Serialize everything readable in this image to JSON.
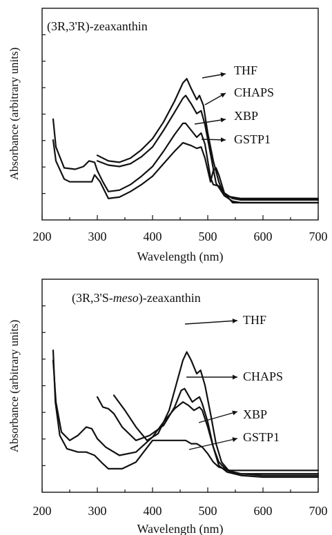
{
  "chart_data": [
    {
      "type": "line",
      "title": "(3R,3'R)-zeaxanthin",
      "xlabel": "Wavelength (nm)",
      "ylabel": "Absorbance (arbitrary units)",
      "xlim": [
        200,
        700
      ],
      "ylim": [
        0,
        1
      ],
      "xticks": [
        "200",
        "300",
        "400",
        "500",
        "600",
        "700"
      ],
      "grid": false,
      "series": [
        {
          "name": "THF",
          "x": [
            300,
            320,
            340,
            360,
            380,
            400,
            420,
            440,
            455,
            462,
            470,
            480,
            485,
            492,
            500,
            510,
            520,
            530,
            545,
            560,
            600,
            700
          ],
          "y": [
            0.34,
            0.3,
            0.29,
            0.32,
            0.38,
            0.46,
            0.58,
            0.73,
            0.86,
            0.89,
            0.82,
            0.74,
            0.77,
            0.7,
            0.5,
            0.3,
            0.15,
            0.05,
            0.01,
            0.0,
            0.0,
            0.0
          ]
        },
        {
          "name": "CHAPS",
          "x": [
            300,
            320,
            340,
            360,
            380,
            400,
            420,
            440,
            455,
            460,
            470,
            480,
            488,
            495,
            505,
            515,
            530,
            560,
            600,
            700
          ],
          "y": [
            0.3,
            0.27,
            0.26,
            0.28,
            0.33,
            0.4,
            0.52,
            0.65,
            0.75,
            0.77,
            0.71,
            0.64,
            0.66,
            0.56,
            0.35,
            0.14,
            0.05,
            0.03,
            0.03,
            0.03
          ]
        },
        {
          "name": "XBP",
          "x": [
            220,
            225,
            240,
            260,
            275,
            285,
            295,
            300,
            310,
            320,
            340,
            360,
            380,
            400,
            420,
            440,
            455,
            460,
            470,
            480,
            488,
            495,
            500,
            505,
            510,
            520,
            530,
            545,
            560,
            600,
            700
          ],
          "y": [
            0.6,
            0.4,
            0.25,
            0.24,
            0.26,
            0.3,
            0.29,
            0.23,
            0.15,
            0.08,
            0.09,
            0.13,
            0.19,
            0.26,
            0.37,
            0.49,
            0.57,
            0.57,
            0.52,
            0.47,
            0.5,
            0.42,
            0.3,
            0.18,
            0.13,
            0.12,
            0.07,
            0.03,
            0.02,
            0.02,
            0.02
          ]
        },
        {
          "name": "GSTP1",
          "x": [
            220,
            225,
            240,
            250,
            270,
            290,
            295,
            305,
            320,
            340,
            360,
            380,
            400,
            420,
            440,
            455,
            470,
            480,
            488,
            495,
            505,
            510,
            515,
            520,
            530,
            545,
            560,
            600,
            700
          ],
          "y": [
            0.45,
            0.3,
            0.17,
            0.15,
            0.15,
            0.15,
            0.2,
            0.15,
            0.03,
            0.04,
            0.08,
            0.13,
            0.19,
            0.28,
            0.37,
            0.43,
            0.41,
            0.39,
            0.4,
            0.32,
            0.15,
            0.23,
            0.25,
            0.2,
            0.07,
            0.0,
            0.0,
            0.0,
            0.0
          ]
        }
      ]
    },
    {
      "type": "line",
      "title": "(3R,3'S-meso)-zeaxanthin",
      "title_parts": [
        "(3R,3'S-",
        "meso",
        ")-zeaxanthin"
      ],
      "xlabel": "Wavelength (nm)",
      "ylabel": "Absorbance (arbitrary units)",
      "xlim": [
        200,
        700
      ],
      "ylim": [
        0,
        1
      ],
      "xticks": [
        "200",
        "300",
        "400",
        "500",
        "600",
        "700"
      ],
      "grid": false,
      "series": [
        {
          "name": "THF",
          "x": [
            330,
            350,
            370,
            390,
            410,
            430,
            445,
            455,
            462,
            470,
            480,
            487,
            495,
            505,
            515,
            525,
            540,
            560,
            600,
            700
          ],
          "y": [
            0.49,
            0.4,
            0.3,
            0.22,
            0.26,
            0.4,
            0.58,
            0.7,
            0.75,
            0.7,
            0.62,
            0.64,
            0.55,
            0.38,
            0.2,
            0.09,
            0.03,
            0.02,
            0.01,
            0.01
          ]
        },
        {
          "name": "CHAPS",
          "x": [
            300,
            310,
            320,
            330,
            345,
            370,
            395,
            420,
            440,
            452,
            458,
            465,
            472,
            480,
            485,
            490,
            500,
            510,
            520,
            535,
            560,
            600,
            700
          ],
          "y": [
            0.48,
            0.42,
            0.41,
            0.38,
            0.3,
            0.22,
            0.25,
            0.31,
            0.42,
            0.52,
            0.53,
            0.49,
            0.45,
            0.47,
            0.48,
            0.44,
            0.33,
            0.18,
            0.07,
            0.03,
            0.01,
            0.0,
            0.0
          ]
        },
        {
          "name": "XBP",
          "x": [
            220,
            225,
            235,
            250,
            265,
            280,
            290,
            300,
            315,
            340,
            370,
            400,
            420,
            440,
            455,
            465,
            475,
            485,
            490,
            500,
            510,
            520,
            535,
            560,
            600,
            700
          ],
          "y": [
            0.7,
            0.45,
            0.27,
            0.22,
            0.25,
            0.3,
            0.29,
            0.23,
            0.18,
            0.13,
            0.15,
            0.24,
            0.33,
            0.41,
            0.45,
            0.43,
            0.4,
            0.42,
            0.4,
            0.3,
            0.18,
            0.09,
            0.04,
            0.02,
            0.02,
            0.02
          ]
        },
        {
          "name": "GSTP1",
          "x": [
            220,
            224,
            232,
            245,
            265,
            280,
            295,
            310,
            320,
            345,
            370,
            400,
            430,
            450,
            460,
            470,
            480,
            490,
            500,
            510,
            520,
            540,
            560,
            600,
            700
          ],
          "y": [
            0.76,
            0.45,
            0.25,
            0.17,
            0.15,
            0.15,
            0.13,
            0.08,
            0.05,
            0.05,
            0.09,
            0.22,
            0.22,
            0.22,
            0.22,
            0.2,
            0.2,
            0.18,
            0.14,
            0.09,
            0.06,
            0.04,
            0.04,
            0.04,
            0.04
          ]
        }
      ]
    }
  ]
}
